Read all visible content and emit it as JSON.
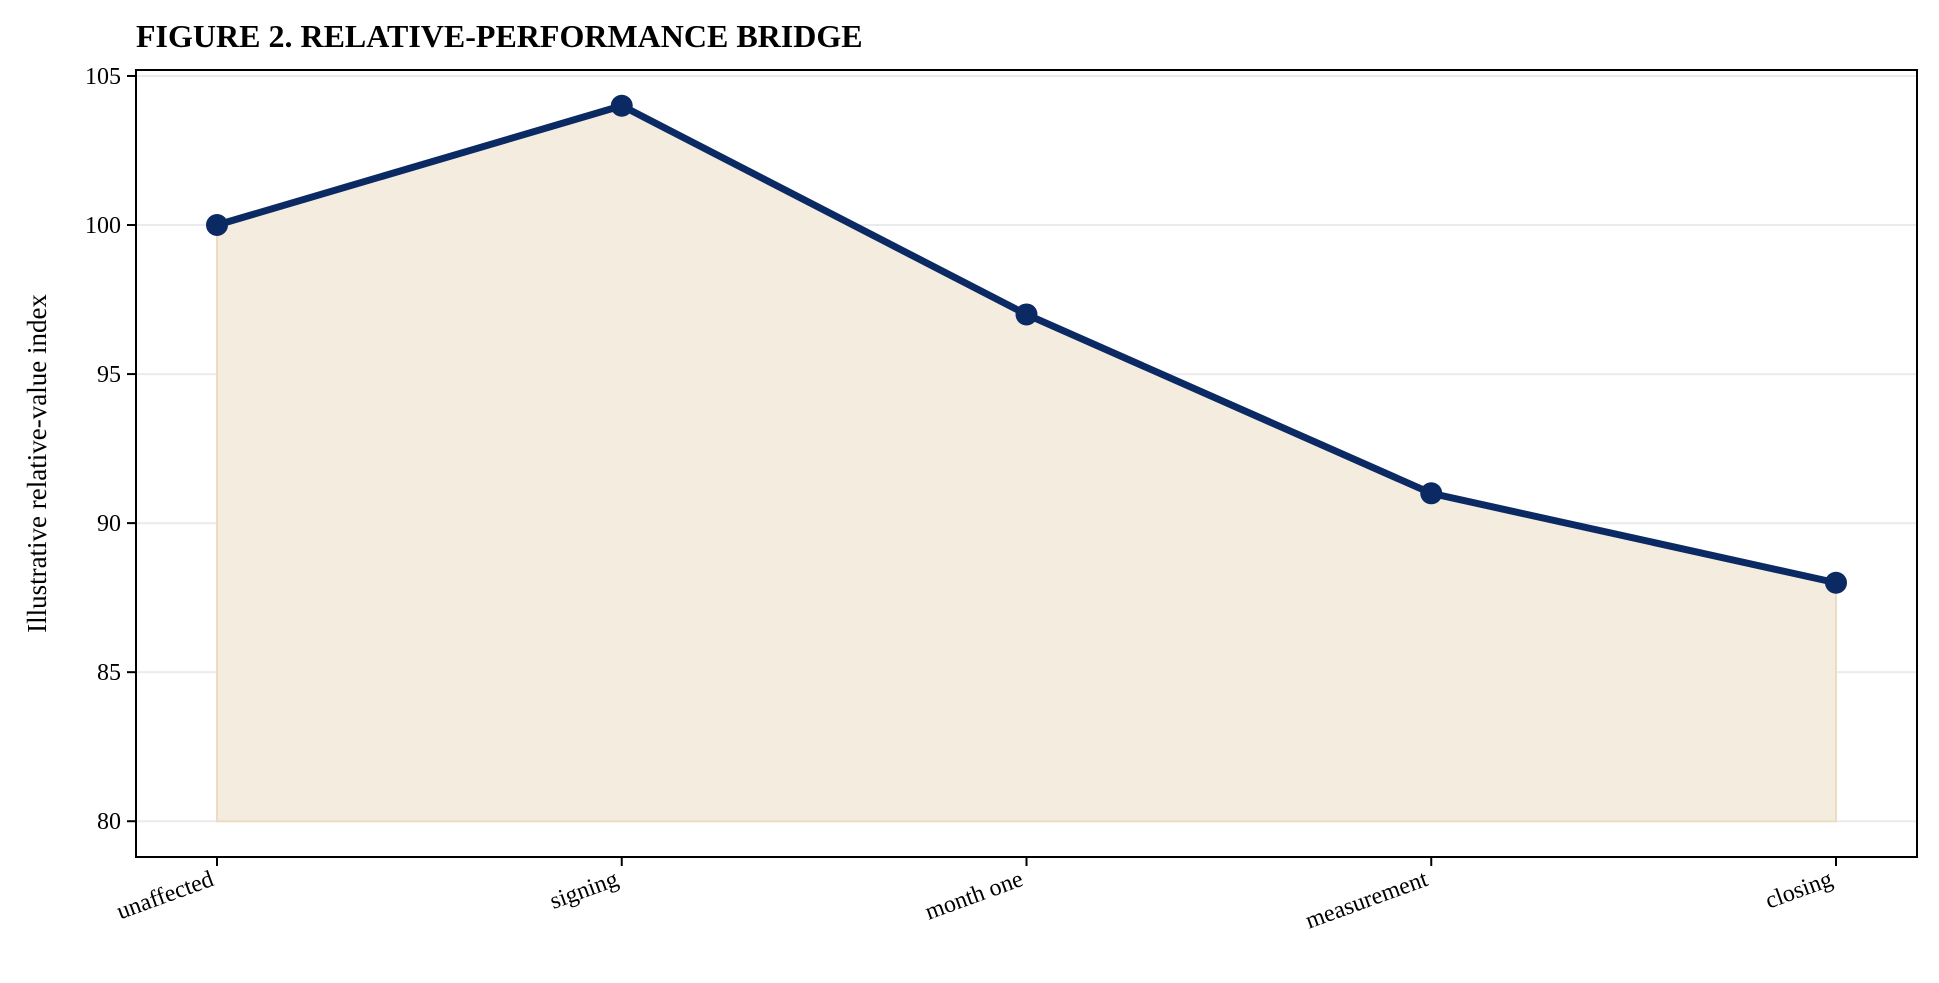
{
  "chart_data": {
    "type": "area",
    "title": "FIGURE 2. RELATIVE-PERFORMANCE BRIDGE",
    "xlabel": "",
    "ylabel": "Illustrative relative-value index",
    "categories": [
      "unaffected",
      "signing",
      "month one",
      "measurement",
      "closing"
    ],
    "series": [
      {
        "values": [
          100,
          104,
          97,
          91,
          88
        ]
      }
    ],
    "ylim": [
      78.8,
      105.2
    ],
    "yticks": [
      80,
      85,
      90,
      95,
      100,
      105
    ],
    "fill_baseline": 80,
    "grid": "horizontal",
    "legend": "none",
    "colors": {
      "line": "#0b2a63",
      "fill": "#f4ecdf",
      "fill_edge": "#ebdcc2",
      "grid": "#ebebeb",
      "axis": "#000000"
    }
  }
}
